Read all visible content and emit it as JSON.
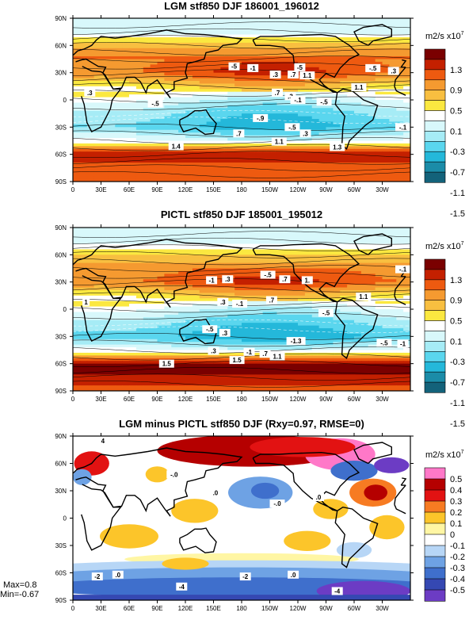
{
  "chart_data": [
    {
      "type": "heatmap",
      "title": "LGM stf850 DJF 186001_196012",
      "units": "m2/s x10",
      "units_exponent": "7",
      "x_tick_labels": [
        "0",
        "30E",
        "60E",
        "90E",
        "120E",
        "150E",
        "180",
        "150W",
        "120W",
        "90W",
        "60W",
        "30W"
      ],
      "y_tick_labels": [
        "90N",
        "60N",
        "30N",
        "0",
        "30S",
        "60S",
        "90S"
      ],
      "colorbar_labels": [
        "1.3",
        "0.9",
        "0.5",
        "0.1",
        "-0.3",
        "-0.7",
        "-1.1",
        "-1.5"
      ],
      "colorbar_colors": [
        "#7a0000",
        "#c42000",
        "#ee5a10",
        "#f59a30",
        "#f8bf40",
        "#fbe840",
        "#ffffff",
        "#d8f8fb",
        "#a6ecf6",
        "#5ad6ee",
        "#24b8da",
        "#1b8ca8",
        "#13627a"
      ],
      "zonal_profile": [
        [
          90,
          -0.3
        ],
        [
          75,
          -0.4
        ],
        [
          60,
          0.5
        ],
        [
          45,
          0.9
        ],
        [
          30,
          1.0
        ],
        [
          15,
          0.3
        ],
        [
          0,
          -0.4
        ],
        [
          -15,
          -0.8
        ],
        [
          -30,
          -1.0
        ],
        [
          -45,
          -0.3
        ],
        [
          -55,
          0.9
        ],
        [
          -62,
          1.3
        ],
        [
          -75,
          0.9
        ],
        [
          -90,
          0.9
        ]
      ],
      "contour_labels": [
        {
          "text": "-5",
          "lon": 172,
          "lat": 37
        },
        {
          "text": "-1",
          "lon": 192,
          "lat": 35
        },
        {
          "text": "-5",
          "lon": 242,
          "lat": 36
        },
        {
          "text": ".3",
          "lon": 216,
          "lat": 28
        },
        {
          "text": ".7",
          "lon": 235,
          "lat": 28
        },
        {
          "text": "1.1",
          "lon": 250,
          "lat": 27
        },
        {
          "text": "-.5",
          "lon": 320,
          "lat": 35
        },
        {
          "text": ".3",
          "lon": 342,
          "lat": 32
        },
        {
          "text": "1.1",
          "lon": 305,
          "lat": 14
        },
        {
          "text": ".7",
          "lon": 218,
          "lat": 8
        },
        {
          "text": ".3",
          "lon": 232,
          "lat": 4
        },
        {
          "text": "-.1",
          "lon": 240,
          "lat": 0
        },
        {
          "text": "-.5",
          "lon": 268,
          "lat": -2
        },
        {
          "text": "-.5",
          "lon": 88,
          "lat": -4
        },
        {
          "text": ".3",
          "lon": 18,
          "lat": 8
        },
        {
          "text": "-.9",
          "lon": 200,
          "lat": -20
        },
        {
          "text": "-.5",
          "lon": 234,
          "lat": -30
        },
        {
          "text": ".7",
          "lon": 177,
          "lat": -37
        },
        {
          "text": ".3",
          "lon": 248,
          "lat": -37
        },
        {
          "text": "-.1",
          "lon": 352,
          "lat": -30
        },
        {
          "text": "1.1",
          "lon": 220,
          "lat": -46
        },
        {
          "text": "1.4",
          "lon": 110,
          "lat": -51
        },
        {
          "text": "1.3",
          "lon": 282,
          "lat": -52
        }
      ]
    },
    {
      "type": "heatmap",
      "title": "PICTL stf850 DJF 185001_195012",
      "units": "m2/s x10",
      "units_exponent": "7",
      "x_tick_labels": [
        "0",
        "30E",
        "60E",
        "90E",
        "120E",
        "150E",
        "180",
        "150W",
        "120W",
        "90W",
        "60W",
        "30W"
      ],
      "y_tick_labels": [
        "90N",
        "60N",
        "30N",
        "0",
        "30S",
        "60S",
        "90S"
      ],
      "colorbar_labels": [
        "1.3",
        "0.9",
        "0.5",
        "0.1",
        "-0.3",
        "-0.7",
        "-1.1",
        "-1.5"
      ],
      "colorbar_colors": [
        "#7a0000",
        "#c42000",
        "#ee5a10",
        "#f59a30",
        "#f8bf40",
        "#fbe840",
        "#ffffff",
        "#d8f8fb",
        "#a6ecf6",
        "#5ad6ee",
        "#24b8da",
        "#1b8ca8",
        "#13627a"
      ],
      "zonal_profile": [
        [
          90,
          -0.5
        ],
        [
          75,
          -0.4
        ],
        [
          60,
          0.3
        ],
        [
          45,
          0.8
        ],
        [
          30,
          1.0
        ],
        [
          15,
          0.3
        ],
        [
          0,
          -0.4
        ],
        [
          -15,
          -0.8
        ],
        [
          -30,
          -1.1
        ],
        [
          -45,
          -0.3
        ],
        [
          -55,
          1.0
        ],
        [
          -62,
          1.5
        ],
        [
          -75,
          1.3
        ],
        [
          -90,
          0.9
        ]
      ],
      "contour_labels": [
        {
          "text": "-1",
          "lon": 148,
          "lat": 32
        },
        {
          "text": ".3",
          "lon": 165,
          "lat": 33
        },
        {
          "text": "-.5",
          "lon": 208,
          "lat": 38
        },
        {
          "text": ".7",
          "lon": 226,
          "lat": 33
        },
        {
          "text": "1.",
          "lon": 250,
          "lat": 32
        },
        {
          "text": "-.1",
          "lon": 352,
          "lat": 44
        },
        {
          "text": "1",
          "lon": 14,
          "lat": 8
        },
        {
          "text": ".3",
          "lon": 160,
          "lat": 8
        },
        {
          "text": "-.1",
          "lon": 178,
          "lat": 6
        },
        {
          "text": ".7",
          "lon": 212,
          "lat": 10
        },
        {
          "text": "1.1",
          "lon": 310,
          "lat": 14
        },
        {
          "text": "-.5",
          "lon": 270,
          "lat": -4
        },
        {
          "text": "-.5",
          "lon": 146,
          "lat": -22
        },
        {
          "text": ".3",
          "lon": 162,
          "lat": -26
        },
        {
          "text": "-1.3",
          "lon": 238,
          "lat": -35
        },
        {
          "text": "-.5",
          "lon": 332,
          "lat": -37
        },
        {
          "text": "-1",
          "lon": 352,
          "lat": -38
        },
        {
          "text": ".3",
          "lon": 150,
          "lat": -46
        },
        {
          "text": "-1",
          "lon": 188,
          "lat": -47
        },
        {
          "text": ".7",
          "lon": 205,
          "lat": -49
        },
        {
          "text": "1.1",
          "lon": 218,
          "lat": -52
        },
        {
          "text": "1.5",
          "lon": 175,
          "lat": -56
        },
        {
          "text": "1.5",
          "lon": 100,
          "lat": -60
        }
      ]
    },
    {
      "type": "heatmap",
      "title": "LGM minus PICTL stf850 DJF (Rxy=0.97, RMSE=0)",
      "units": "m2/s x10",
      "units_exponent": "7",
      "x_tick_labels": [
        "0",
        "30E",
        "60E",
        "90E",
        "120E",
        "150E",
        "180",
        "150W",
        "120W",
        "90W",
        "60W",
        "30W"
      ],
      "y_tick_labels": [
        "90N",
        "60N",
        "30N",
        "0",
        "30S",
        "60S",
        "90S"
      ],
      "colorbar_labels": [
        "0.5",
        "0.4",
        "0.3",
        "0.2",
        "0.1",
        "0",
        "-0.1",
        "-0.2",
        "-0.3",
        "-0.4",
        "-0.5"
      ],
      "colorbar_colors": [
        "#ff78c8",
        "#b50000",
        "#e21212",
        "#f77b22",
        "#fcc52a",
        "#fff6a4",
        "#ffffff",
        "#b7d6f6",
        "#6ea2e4",
        "#3f6fcc",
        "#3548b2",
        "#6c3cc4"
      ],
      "stats": {
        "max": "Max=0.8",
        "min": "Min=-0.67"
      },
      "contour_labels": [
        {
          "text": "-.0",
          "lon": 108,
          "lat": 48
        },
        {
          "text": ".0",
          "lon": 152,
          "lat": 28
        },
        {
          "text": ".0",
          "lon": 262,
          "lat": 23
        },
        {
          "text": "-.0",
          "lon": 218,
          "lat": 16
        },
        {
          "text": "-2",
          "lon": 26,
          "lat": -64
        },
        {
          "text": ".0",
          "lon": 48,
          "lat": -62
        },
        {
          "text": "-2",
          "lon": 184,
          "lat": -64
        },
        {
          "text": ".0",
          "lon": 235,
          "lat": -62
        },
        {
          "text": "-4",
          "lon": 116,
          "lat": -75
        },
        {
          "text": "-4",
          "lon": 282,
          "lat": -80
        },
        {
          "text": "4",
          "lon": 32,
          "lat": 85
        }
      ]
    }
  ]
}
